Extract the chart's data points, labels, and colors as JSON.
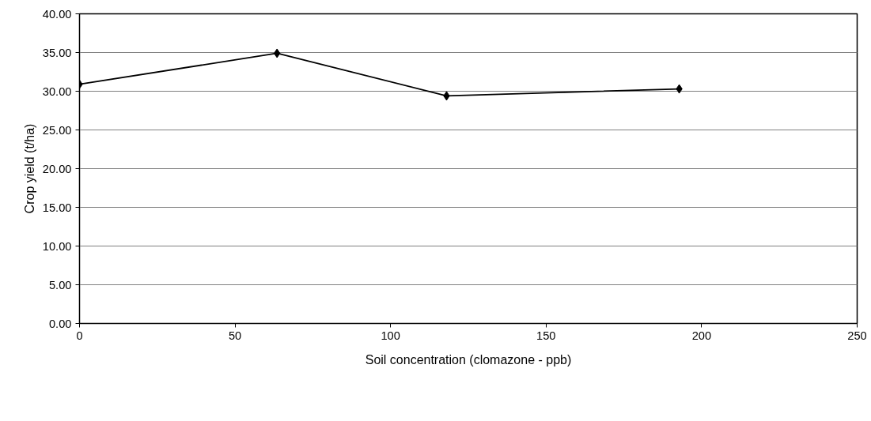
{
  "chart_data": {
    "type": "line",
    "xlabel": "Soil concentration (clomazone - ppb)",
    "ylabel": "Crop yield (t/ha)",
    "x": [
      0,
      63.5,
      118,
      192.8
    ],
    "series": [
      {
        "color": "#000000",
        "values": [
          30.9,
          34.9,
          29.4,
          30.3
        ]
      }
    ],
    "xlim": [
      0,
      250
    ],
    "xticks": [
      0,
      50,
      100,
      150,
      200,
      250
    ],
    "ylim": [
      0,
      40
    ],
    "yticks": [
      {
        "value": 0,
        "label": "0.00"
      },
      {
        "value": 5,
        "label": "5.00"
      },
      {
        "value": 10,
        "label": "10.00"
      },
      {
        "value": 15,
        "label": "15.00"
      },
      {
        "value": 20,
        "label": "20.00"
      },
      {
        "value": 25,
        "label": "25.00"
      },
      {
        "value": 30,
        "label": "30.00"
      },
      {
        "value": 35,
        "label": "35.00"
      },
      {
        "value": 40,
        "label": "40.00"
      }
    ],
    "grid": "y",
    "marker": "diamond",
    "line_style": "solid"
  }
}
